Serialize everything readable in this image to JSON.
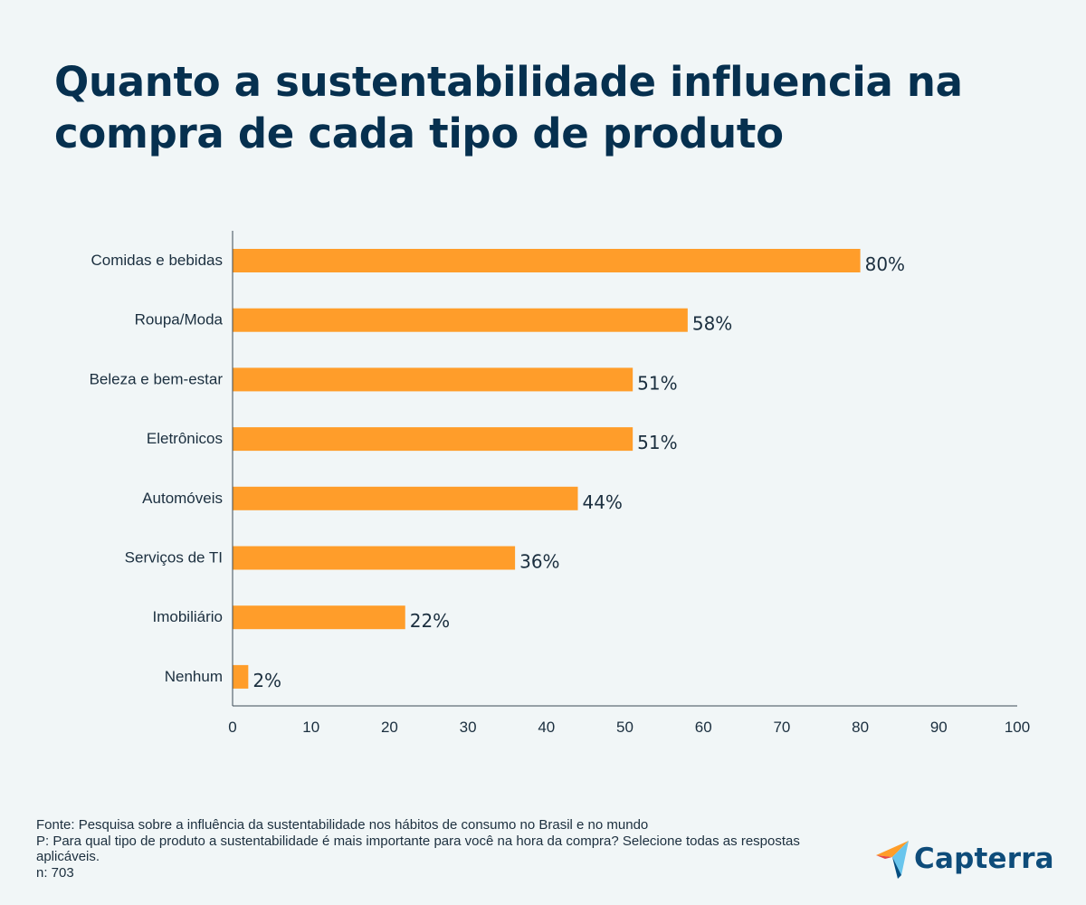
{
  "title_lines": [
    "Quanto a sustentabilidade influencia na",
    "compra de cada tipo de produto"
  ],
  "chart_data": {
    "type": "bar",
    "orientation": "horizontal",
    "title": "Quanto a sustentabilidade influencia na compra de cada tipo de produto",
    "categories": [
      "Comidas e bebidas",
      "Roupa/Moda",
      "Beleza e bem-estar",
      "Eletrônicos",
      "Automóveis",
      "Serviços de TI",
      "Imobiliário",
      "Nenhum"
    ],
    "values": [
      80,
      58,
      51,
      51,
      44,
      36,
      22,
      2
    ],
    "value_labels": [
      "80%",
      "58%",
      "51%",
      "51%",
      "44%",
      "36%",
      "22%",
      "2%"
    ],
    "xlim": [
      0,
      100
    ],
    "xticks": [
      0,
      10,
      20,
      30,
      40,
      50,
      60,
      70,
      80,
      90,
      100
    ],
    "xlabel": "",
    "ylabel": "",
    "grid": false,
    "bar_color": "#ff9d2a"
  },
  "footer": {
    "source": "Fonte: Pesquisa sobre a influência da sustentabilidade nos hábitos de consumo no Brasil e no mundo",
    "question": "P: Para qual tipo de produto a sustentabilidade é mais importante para você na hora da compra? Selecione todas as respostas aplicáveis.",
    "sample": "n: 703"
  },
  "logo": {
    "text": "Capterra",
    "icon": "capterra-arrow-icon",
    "colors": [
      "#ff9d28",
      "#68c5ed",
      "#044d80",
      "#e54747"
    ]
  }
}
